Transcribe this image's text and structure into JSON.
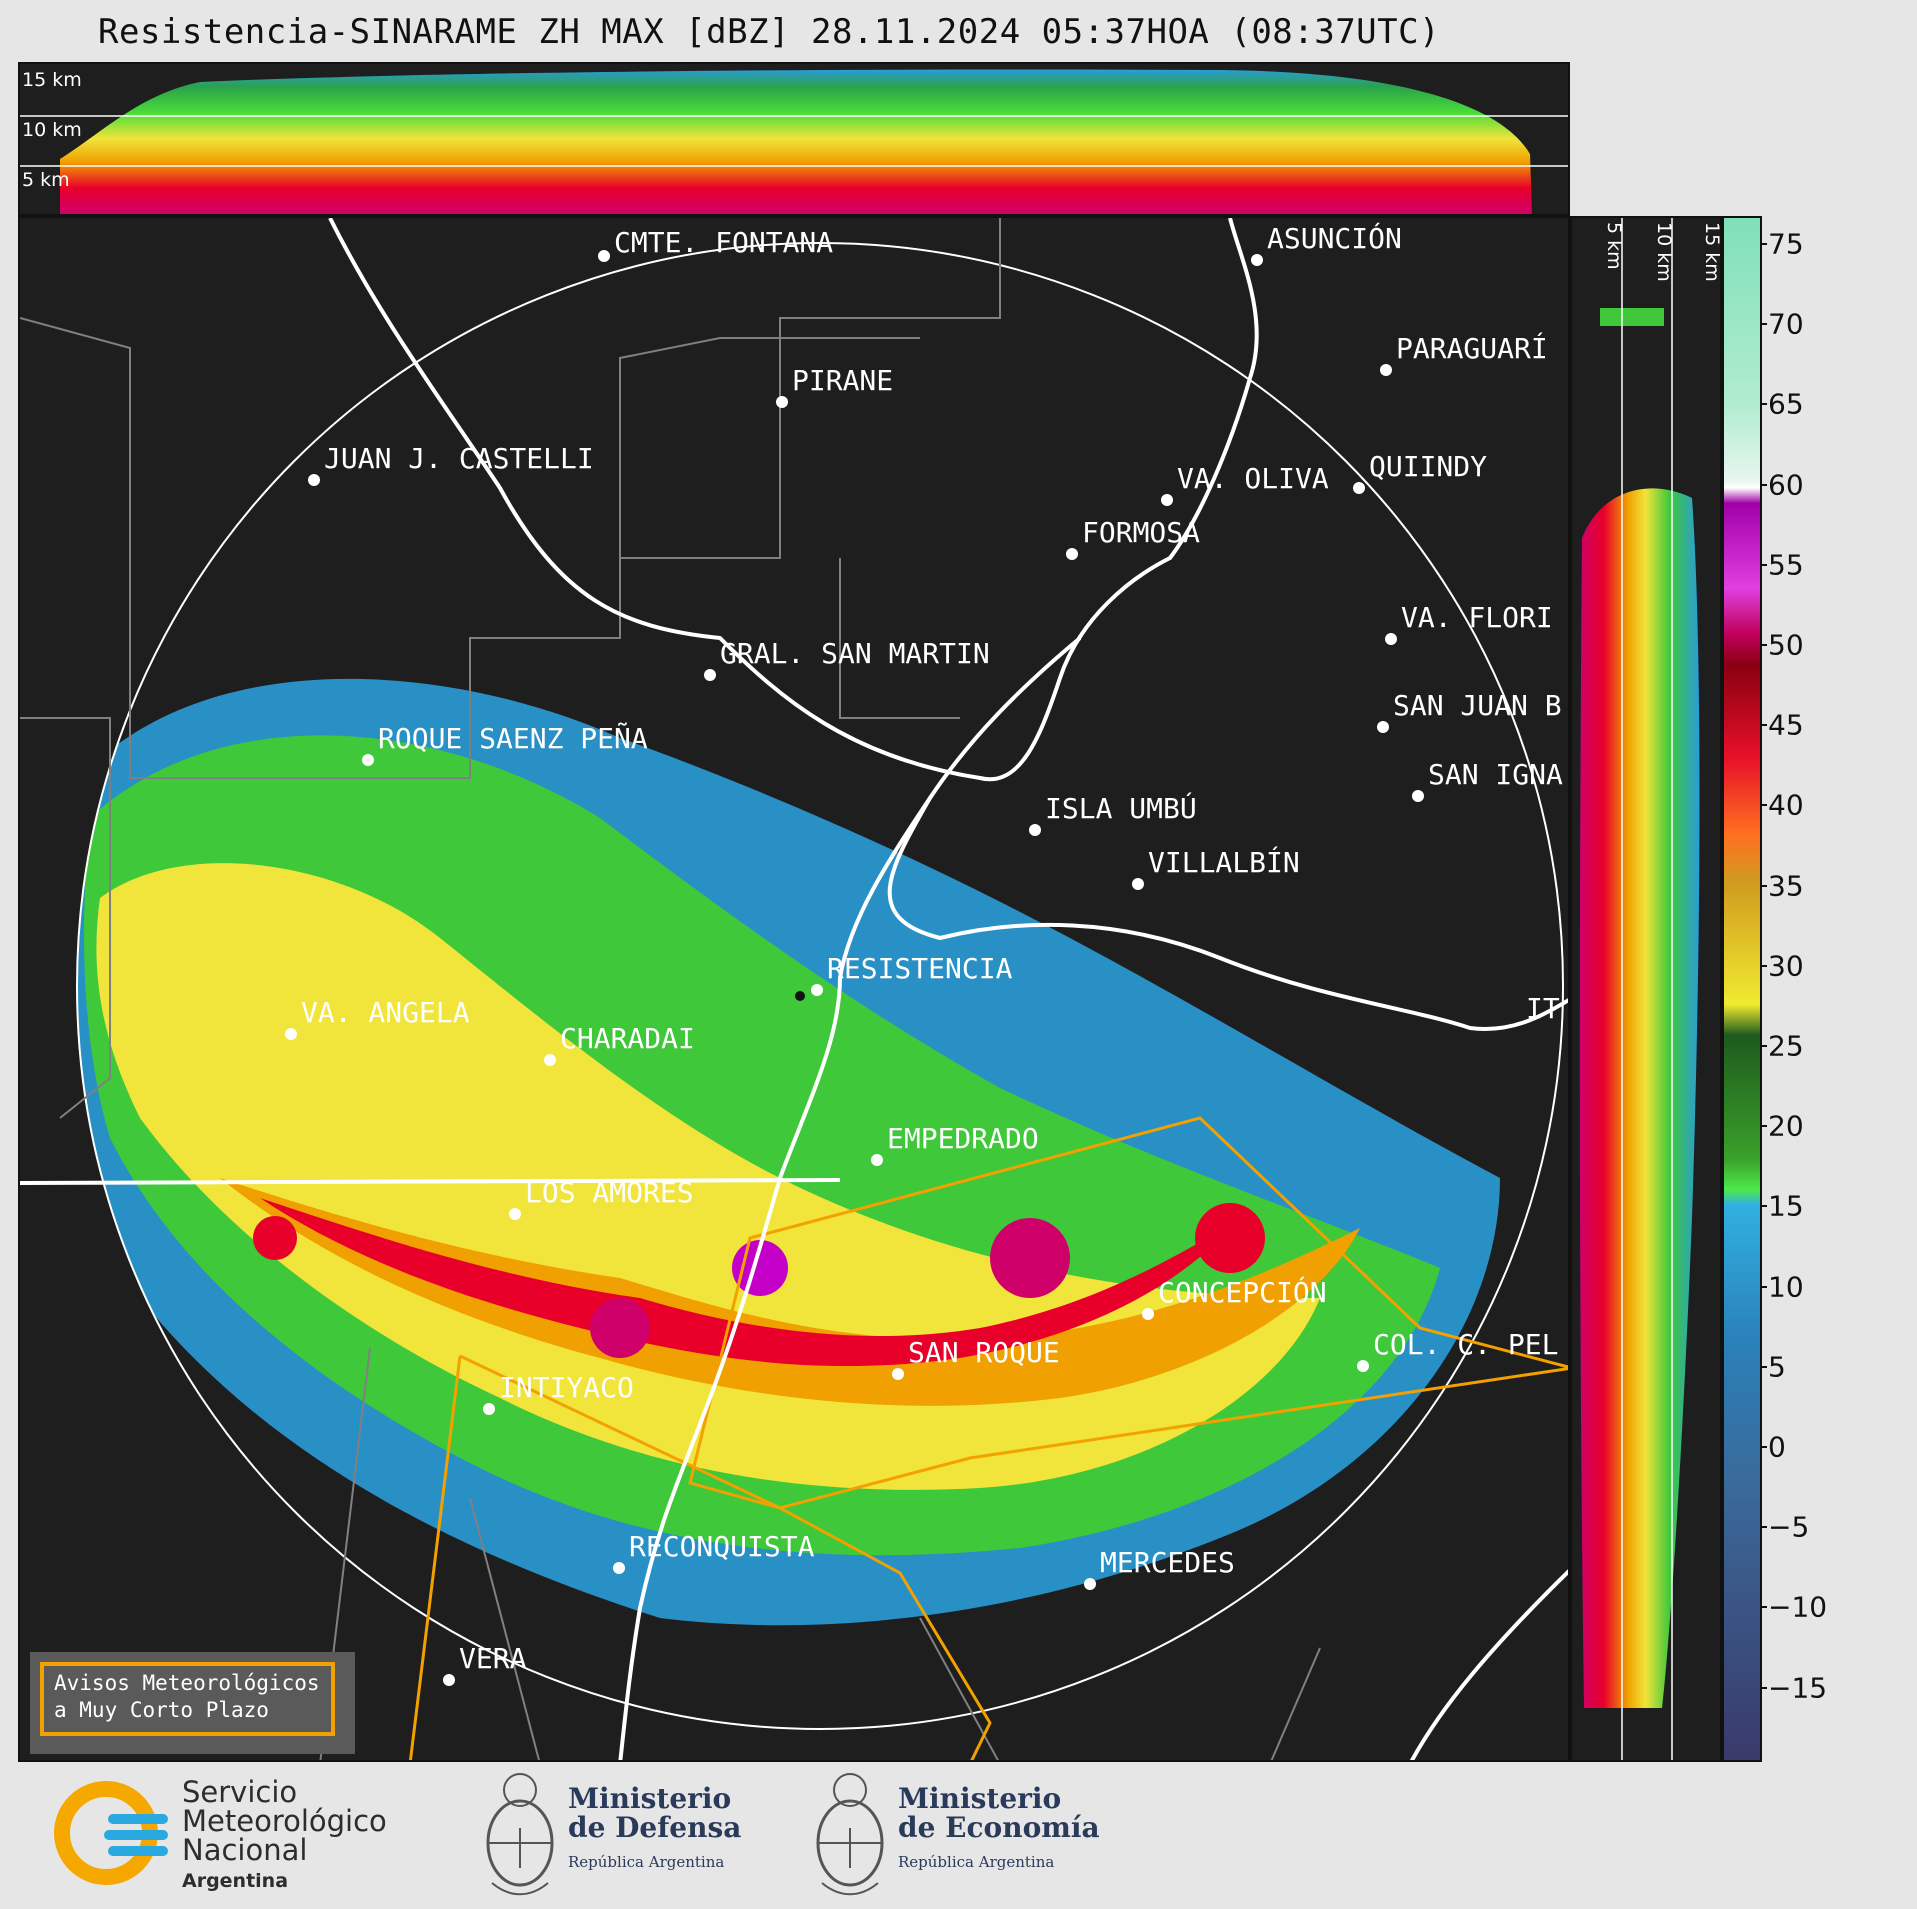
{
  "title": "Resistencia-SINARAME ZH MAX [dBZ] 28.11.2024 05:37HOA (08:37UTC)",
  "top_panel": {
    "altitude_labels": [
      "15 km",
      "10 km",
      "5 km"
    ]
  },
  "side_panel": {
    "altitude_labels": [
      "5 km",
      "10 km",
      "15 km"
    ]
  },
  "colorbar": {
    "ticks": [
      "75",
      "70",
      "65",
      "60",
      "55",
      "50",
      "45",
      "40",
      "35",
      "30",
      "25",
      "20",
      "15",
      "10",
      "5",
      "0",
      "−5",
      "−10",
      "−15"
    ]
  },
  "cities": [
    {
      "name": "CMTE. FONTANA"
    },
    {
      "name": "ASUNCIÓN"
    },
    {
      "name": "PIRANE"
    },
    {
      "name": "PARAGUARÍ"
    },
    {
      "name": "JUAN J. CASTELLI"
    },
    {
      "name": "VA. OLIVA"
    },
    {
      "name": "QUIINDY"
    },
    {
      "name": "FORMOSA"
    },
    {
      "name": "VA. FLORI"
    },
    {
      "name": "GRAL. SAN MARTIN"
    },
    {
      "name": "SAN JUAN B"
    },
    {
      "name": "ROQUE SAENZ PEÑA"
    },
    {
      "name": "SAN IGNA"
    },
    {
      "name": "ISLA UMBÚ"
    },
    {
      "name": "VILLALBÍN"
    },
    {
      "name": "RESISTENCIA"
    },
    {
      "name": "VA. ANGELA"
    },
    {
      "name": "CHARADAI"
    },
    {
      "name": "IT"
    },
    {
      "name": "EMPEDRADO"
    },
    {
      "name": "LOS AMORES"
    },
    {
      "name": "CONCEPCIÓN"
    },
    {
      "name": "SAN ROQUE"
    },
    {
      "name": "COL. C. PEL"
    },
    {
      "name": "INTIYACO"
    },
    {
      "name": "RECONQUISTA"
    },
    {
      "name": "MERCEDES"
    },
    {
      "name": "VERA"
    }
  ],
  "warning_box": {
    "line1": "Avisos Meteorológicos",
    "line2": "a Muy Corto Plazo"
  },
  "logos": {
    "smn": {
      "line1": "Servicio",
      "line2": "Meteorológico",
      "line3": "Nacional",
      "sub": "Argentina"
    },
    "defensa": {
      "line1": "Ministerio",
      "line2": "de Defensa",
      "sub": "República Argentina"
    },
    "economia": {
      "line1": "Ministerio",
      "line2": "de Economía",
      "sub": "República Argentina"
    }
  },
  "colors": {
    "background": "#1e1e1e",
    "river": "#ffffff",
    "warning_outline": "#f2a100",
    "borders": "#808080"
  }
}
